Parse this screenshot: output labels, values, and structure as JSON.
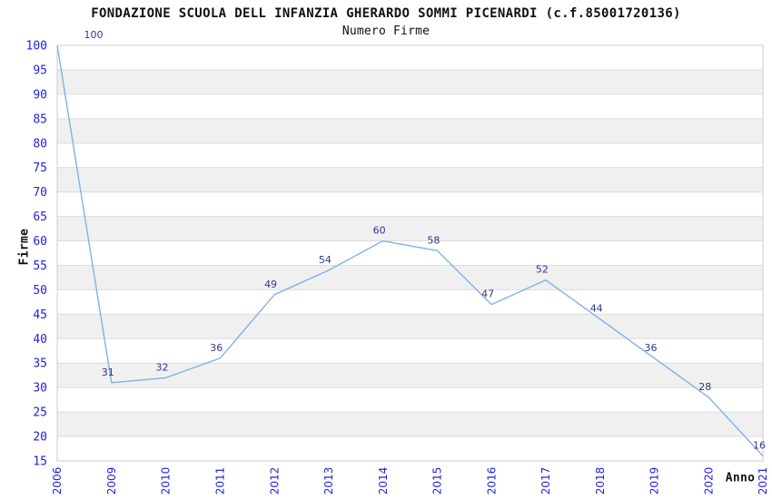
{
  "chart_data": {
    "type": "line",
    "title": "FONDAZIONE SCUOLA DELL INFANZIA GHERARDO SOMMI PICENARDI (c.f.85001720136)",
    "subtitle": "Numero Firme",
    "xlabel": "Anno",
    "ylabel": "Firme",
    "categories": [
      "2006",
      "2009",
      "2010",
      "2011",
      "2012",
      "2013",
      "2014",
      "2015",
      "2016",
      "2017",
      "2018",
      "2019",
      "2020",
      "2021"
    ],
    "values": [
      100,
      31,
      32,
      36,
      49,
      54,
      60,
      58,
      47,
      52,
      44,
      36,
      28,
      16
    ],
    "ylim": [
      15,
      100
    ],
    "ytick_step": 5,
    "grid": "horizontal-bands-alternating",
    "legend": "none",
    "colors": {
      "line": "#7FB2E5",
      "tick_label_blue": "#2222DD",
      "value_label_navy": "#343490",
      "band_gray": "#F0F0F0",
      "band_white": "#FFFFFF",
      "grid_line": "#DCDCDC",
      "plot_border": "#CCCCCC",
      "text_black": "#111111"
    }
  }
}
